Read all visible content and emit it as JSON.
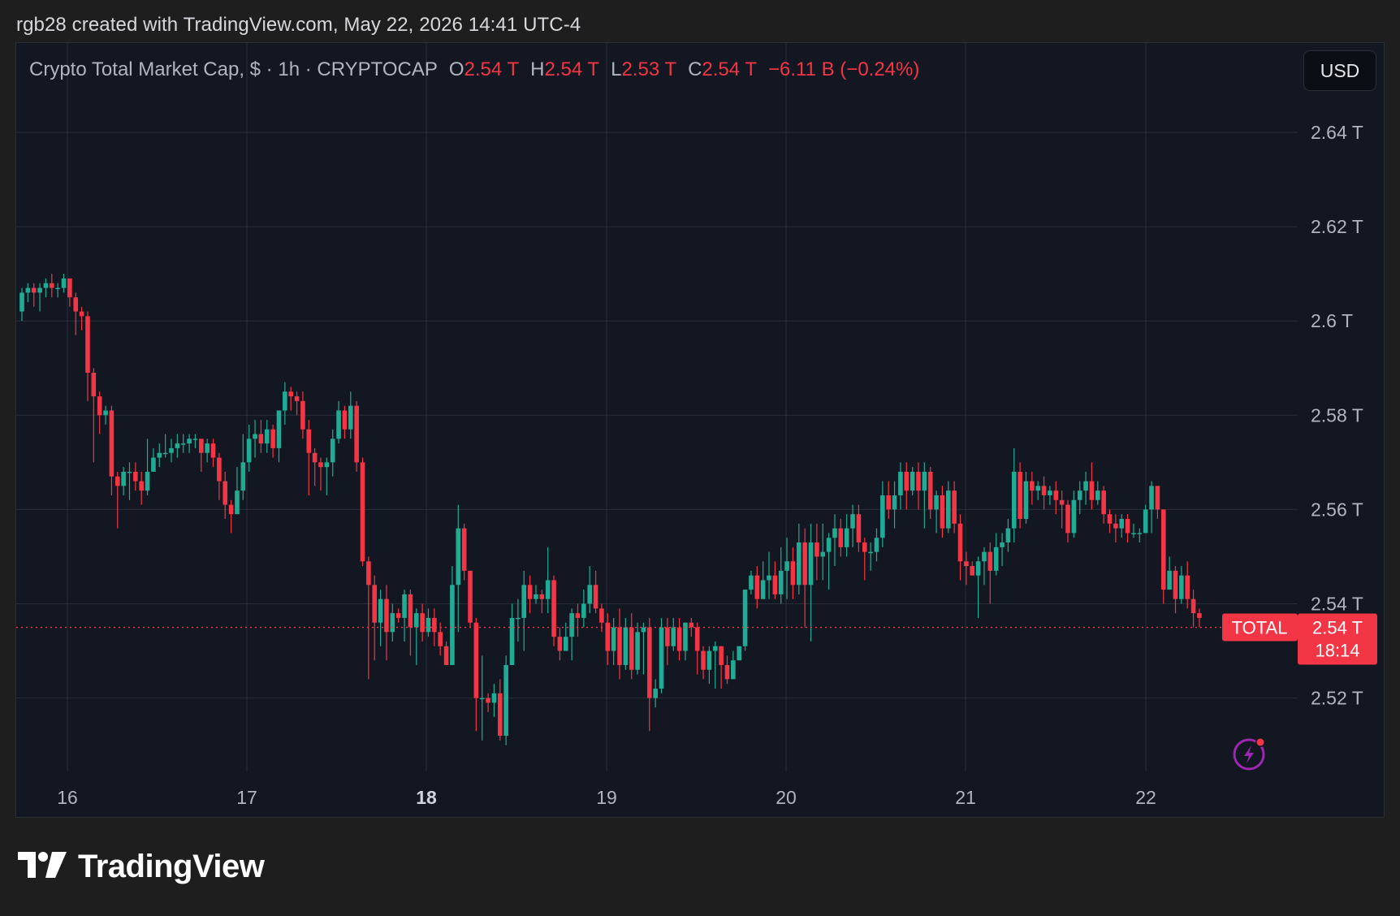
{
  "header": {
    "caption": "rgb28 created with TradingView.com, May 22, 2026 14:41 UTC-4"
  },
  "legend": {
    "title": "Crypto Total Market Cap, $ · 1h · CRYPTOCAP",
    "o_label": "O",
    "o_value": "2.54 T",
    "h_label": "H",
    "h_value": "2.54 T",
    "l_label": "L",
    "l_value": "2.53 T",
    "c_label": "C",
    "c_value": "2.54 T",
    "change": "−6.11 B (−0.24%)"
  },
  "toolbar": {
    "currency_button": "USD"
  },
  "price_axis": {
    "ticks": [
      "2.64 T",
      "2.62 T",
      "2.6 T",
      "2.58 T",
      "2.56 T",
      "2.54 T",
      "2.52 T"
    ]
  },
  "time_axis": {
    "ticks": [
      "16",
      "17",
      "18",
      "19",
      "20",
      "21",
      "22"
    ],
    "bold_tick": "18"
  },
  "last_price": {
    "symbol_label": "TOTAL",
    "price_label": "2.54 T",
    "countdown": "18:14"
  },
  "brand": {
    "name": "TradingView"
  },
  "colors": {
    "up": "#22ab94",
    "down": "#f23645",
    "background": "#131722",
    "grid": "#2a2e39",
    "text": "#b2b5be"
  },
  "icons": {
    "lightning": "lightning-icon",
    "logo": "tradingview-logo-icon"
  },
  "chart_data": {
    "type": "candlestick",
    "interval": "1h",
    "y_unit": "T",
    "ylim": [
      2.505,
      2.655
    ],
    "y_ticks": [
      2.52,
      2.54,
      2.56,
      2.58,
      2.6,
      2.62,
      2.64
    ],
    "x_ticks": [
      "16",
      "17",
      "18",
      "19",
      "20",
      "21",
      "22"
    ],
    "grid": true,
    "last_price": 2.535,
    "candles": [
      [
        2.602,
        2.606,
        2.6,
        2.607
      ],
      [
        2.606,
        2.607,
        2.604,
        2.608
      ],
      [
        2.607,
        2.606,
        2.603,
        2.608
      ],
      [
        2.606,
        2.607,
        2.602,
        2.608
      ],
      [
        2.607,
        2.608,
        2.605,
        2.609
      ],
      [
        2.608,
        2.607,
        2.605,
        2.61
      ],
      [
        2.607,
        2.607,
        2.605,
        2.608
      ],
      [
        2.607,
        2.609,
        2.606,
        2.61
      ],
      [
        2.609,
        2.605,
        2.603,
        2.609
      ],
      [
        2.605,
        2.602,
        2.597,
        2.606
      ],
      [
        2.602,
        2.601,
        2.598,
        2.603
      ],
      [
        2.601,
        2.589,
        2.583,
        2.602
      ],
      [
        2.589,
        2.584,
        2.57,
        2.59
      ],
      [
        2.584,
        2.58,
        2.576,
        2.585
      ],
      [
        2.58,
        2.581,
        2.578,
        2.582
      ],
      [
        2.581,
        2.567,
        2.563,
        2.582
      ],
      [
        2.567,
        2.565,
        2.556,
        2.568
      ],
      [
        2.565,
        2.568,
        2.563,
        2.569
      ],
      [
        2.568,
        2.568,
        2.562,
        2.57
      ],
      [
        2.568,
        2.566,
        2.564,
        2.57
      ],
      [
        2.566,
        2.564,
        2.561,
        2.568
      ],
      [
        2.564,
        2.568,
        2.563,
        2.575
      ],
      [
        2.568,
        2.571,
        2.568,
        2.573
      ],
      [
        2.571,
        2.572,
        2.569,
        2.574
      ],
      [
        2.572,
        2.572,
        2.571,
        2.576
      ],
      [
        2.572,
        2.573,
        2.57,
        2.575
      ],
      [
        2.573,
        2.574,
        2.571,
        2.576
      ],
      [
        2.574,
        2.574,
        2.572,
        2.576
      ],
      [
        2.574,
        2.575,
        2.572,
        2.576
      ],
      [
        2.575,
        2.575,
        2.573,
        2.576
      ],
      [
        2.575,
        2.572,
        2.568,
        2.575
      ],
      [
        2.572,
        2.574,
        2.57,
        2.575
      ],
      [
        2.574,
        2.571,
        2.569,
        2.575
      ],
      [
        2.571,
        2.566,
        2.562,
        2.572
      ],
      [
        2.566,
        2.561,
        2.558,
        2.568
      ],
      [
        2.561,
        2.559,
        2.555,
        2.562
      ],
      [
        2.559,
        2.564,
        2.559,
        2.569
      ],
      [
        2.564,
        2.57,
        2.562,
        2.576
      ],
      [
        2.57,
        2.575,
        2.568,
        2.578
      ],
      [
        2.575,
        2.576,
        2.571,
        2.579
      ],
      [
        2.576,
        2.574,
        2.572,
        2.579
      ],
      [
        2.574,
        2.577,
        2.572,
        2.579
      ],
      [
        2.577,
        2.573,
        2.571,
        2.578
      ],
      [
        2.573,
        2.581,
        2.57,
        2.581
      ],
      [
        2.581,
        2.585,
        2.578,
        2.587
      ],
      [
        2.585,
        2.584,
        2.581,
        2.586
      ],
      [
        2.584,
        2.583,
        2.58,
        2.585
      ],
      [
        2.583,
        2.577,
        2.575,
        2.585
      ],
      [
        2.577,
        2.572,
        2.563,
        2.579
      ],
      [
        2.572,
        2.57,
        2.565,
        2.573
      ],
      [
        2.57,
        2.569,
        2.564,
        2.571
      ],
      [
        2.569,
        2.57,
        2.563,
        2.571
      ],
      [
        2.57,
        2.575,
        2.567,
        2.577
      ],
      [
        2.575,
        2.581,
        2.574,
        2.583
      ],
      [
        2.581,
        2.577,
        2.575,
        2.582
      ],
      [
        2.577,
        2.582,
        2.575,
        2.585
      ],
      [
        2.582,
        2.57,
        2.568,
        2.583
      ],
      [
        2.57,
        2.549,
        2.548,
        2.571
      ],
      [
        2.549,
        2.544,
        2.524,
        2.55
      ],
      [
        2.544,
        2.536,
        2.528,
        2.546
      ],
      [
        2.536,
        2.541,
        2.531,
        2.543
      ],
      [
        2.541,
        2.534,
        2.528,
        2.544
      ],
      [
        2.534,
        2.538,
        2.532,
        2.54
      ],
      [
        2.538,
        2.537,
        2.536,
        2.539
      ],
      [
        2.537,
        2.542,
        2.532,
        2.543
      ],
      [
        2.542,
        2.535,
        2.529,
        2.543
      ],
      [
        2.535,
        2.538,
        2.527,
        2.539
      ],
      [
        2.538,
        2.534,
        2.532,
        2.54
      ],
      [
        2.534,
        2.537,
        2.533,
        2.539
      ],
      [
        2.537,
        2.534,
        2.531,
        2.539
      ],
      [
        2.534,
        2.531,
        2.529,
        2.536
      ],
      [
        2.531,
        2.527,
        2.527,
        2.532
      ],
      [
        2.527,
        2.544,
        2.528,
        2.548
      ],
      [
        2.544,
        2.556,
        2.534,
        2.561
      ],
      [
        2.556,
        2.547,
        2.545,
        2.557
      ],
      [
        2.547,
        2.536,
        2.535,
        2.547
      ],
      [
        2.536,
        2.52,
        2.513,
        2.537
      ],
      [
        2.52,
        2.52,
        2.511,
        2.529
      ],
      [
        2.52,
        2.519,
        2.517,
        2.521
      ],
      [
        2.519,
        2.521,
        2.516,
        2.523
      ],
      [
        2.521,
        2.512,
        2.511,
        2.524
      ],
      [
        2.512,
        2.527,
        2.51,
        2.529
      ],
      [
        2.527,
        2.537,
        2.527,
        2.54
      ],
      [
        2.537,
        2.537,
        2.532,
        2.541
      ],
      [
        2.537,
        2.544,
        2.53,
        2.547
      ],
      [
        2.544,
        2.541,
        2.538,
        2.546
      ],
      [
        2.541,
        2.542,
        2.54,
        2.544
      ],
      [
        2.542,
        2.541,
        2.538,
        2.543
      ],
      [
        2.541,
        2.545,
        2.538,
        2.552
      ],
      [
        2.545,
        2.533,
        2.531,
        2.546
      ],
      [
        2.533,
        2.53,
        2.528,
        2.535
      ],
      [
        2.53,
        2.533,
        2.53,
        2.536
      ],
      [
        2.533,
        2.538,
        2.528,
        2.539
      ],
      [
        2.538,
        2.537,
        2.533,
        2.54
      ],
      [
        2.537,
        2.54,
        2.535,
        2.543
      ],
      [
        2.54,
        2.544,
        2.538,
        2.548
      ],
      [
        2.544,
        2.539,
        2.538,
        2.547
      ],
      [
        2.539,
        2.536,
        2.534,
        2.54
      ],
      [
        2.536,
        2.53,
        2.527,
        2.538
      ],
      [
        2.53,
        2.535,
        2.527,
        2.537
      ],
      [
        2.535,
        2.527,
        2.524,
        2.539
      ],
      [
        2.527,
        2.535,
        2.526,
        2.537
      ],
      [
        2.535,
        2.526,
        2.524,
        2.538
      ],
      [
        2.526,
        2.534,
        2.525,
        2.536
      ],
      [
        2.534,
        2.535,
        2.525,
        2.536
      ],
      [
        2.535,
        2.52,
        2.513,
        2.537
      ],
      [
        2.52,
        2.522,
        2.518,
        2.524
      ],
      [
        2.522,
        2.535,
        2.521,
        2.537
      ],
      [
        2.535,
        2.531,
        2.527,
        2.537
      ],
      [
        2.531,
        2.535,
        2.53,
        2.537
      ],
      [
        2.535,
        2.53,
        2.528,
        2.537
      ],
      [
        2.53,
        2.536,
        2.528,
        2.536
      ],
      [
        2.536,
        2.535,
        2.533,
        2.537
      ],
      [
        2.535,
        2.53,
        2.525,
        2.536
      ],
      [
        2.53,
        2.526,
        2.524,
        2.531
      ],
      [
        2.526,
        2.53,
        2.523,
        2.531
      ],
      [
        2.53,
        2.531,
        2.522,
        2.532
      ],
      [
        2.531,
        2.527,
        2.522,
        2.531
      ],
      [
        2.527,
        2.524,
        2.523,
        2.529
      ],
      [
        2.524,
        2.528,
        2.525,
        2.53
      ],
      [
        2.528,
        2.531,
        2.528,
        2.531
      ],
      [
        2.531,
        2.543,
        2.53,
        2.543
      ],
      [
        2.543,
        2.546,
        2.542,
        2.547
      ],
      [
        2.546,
        2.541,
        2.539,
        2.548
      ],
      [
        2.541,
        2.545,
        2.541,
        2.549
      ],
      [
        2.545,
        2.546,
        2.541,
        2.551
      ],
      [
        2.546,
        2.542,
        2.541,
        2.549
      ],
      [
        2.542,
        2.547,
        2.54,
        2.552
      ],
      [
        2.547,
        2.549,
        2.541,
        2.554
      ],
      [
        2.549,
        2.544,
        2.541,
        2.552
      ],
      [
        2.544,
        2.553,
        2.542,
        2.557
      ],
      [
        2.553,
        2.544,
        2.535,
        2.556
      ],
      [
        2.544,
        2.553,
        2.532,
        2.557
      ],
      [
        2.553,
        2.55,
        2.545,
        2.557
      ],
      [
        2.55,
        2.551,
        2.545,
        2.557
      ],
      [
        2.551,
        2.554,
        2.543,
        2.555
      ],
      [
        2.554,
        2.556,
        2.548,
        2.559
      ],
      [
        2.556,
        2.552,
        2.55,
        2.558
      ],
      [
        2.552,
        2.556,
        2.55,
        2.559
      ],
      [
        2.556,
        2.559,
        2.552,
        2.561
      ],
      [
        2.559,
        2.553,
        2.551,
        2.561
      ],
      [
        2.553,
        2.551,
        2.545,
        2.554
      ],
      [
        2.551,
        2.551,
        2.547,
        2.553
      ],
      [
        2.551,
        2.554,
        2.549,
        2.556
      ],
      [
        2.554,
        2.563,
        2.552,
        2.566
      ],
      [
        2.563,
        2.56,
        2.558,
        2.566
      ],
      [
        2.56,
        2.563,
        2.556,
        2.566
      ],
      [
        2.563,
        2.568,
        2.56,
        2.57
      ],
      [
        2.568,
        2.564,
        2.56,
        2.57
      ],
      [
        2.564,
        2.568,
        2.563,
        2.569
      ],
      [
        2.568,
        2.564,
        2.56,
        2.57
      ],
      [
        2.564,
        2.568,
        2.556,
        2.57
      ],
      [
        2.568,
        2.56,
        2.558,
        2.569
      ],
      [
        2.56,
        2.563,
        2.555,
        2.564
      ],
      [
        2.563,
        2.556,
        2.554,
        2.565
      ],
      [
        2.556,
        2.564,
        2.555,
        2.566
      ],
      [
        2.564,
        2.557,
        2.555,
        2.566
      ],
      [
        2.557,
        2.549,
        2.545,
        2.559
      ],
      [
        2.549,
        2.548,
        2.544,
        2.551
      ],
      [
        2.548,
        2.546,
        2.547,
        2.549
      ],
      [
        2.546,
        2.549,
        2.537,
        2.55
      ],
      [
        2.549,
        2.551,
        2.544,
        2.552
      ],
      [
        2.551,
        2.547,
        2.54,
        2.553
      ],
      [
        2.547,
        2.552,
        2.546,
        2.555
      ],
      [
        2.552,
        2.553,
        2.548,
        2.555
      ],
      [
        2.553,
        2.556,
        2.551,
        2.558
      ],
      [
        2.556,
        2.568,
        2.553,
        2.573
      ],
      [
        2.568,
        2.558,
        2.556,
        2.57
      ],
      [
        2.558,
        2.566,
        2.557,
        2.568
      ],
      [
        2.566,
        2.564,
        2.561,
        2.568
      ],
      [
        2.564,
        2.565,
        2.562,
        2.566
      ],
      [
        2.565,
        2.563,
        2.56,
        2.567
      ],
      [
        2.563,
        2.564,
        2.561,
        2.565
      ],
      [
        2.564,
        2.562,
        2.559,
        2.566
      ],
      [
        2.562,
        2.561,
        2.556,
        2.564
      ],
      [
        2.561,
        2.555,
        2.553,
        2.562
      ],
      [
        2.555,
        2.562,
        2.554,
        2.564
      ],
      [
        2.562,
        2.564,
        2.559,
        2.566
      ],
      [
        2.564,
        2.566,
        2.561,
        2.568
      ],
      [
        2.566,
        2.562,
        2.56,
        2.57
      ],
      [
        2.562,
        2.564,
        2.561,
        2.566
      ],
      [
        2.564,
        2.559,
        2.557,
        2.565
      ],
      [
        2.559,
        2.557,
        2.555,
        2.56
      ],
      [
        2.557,
        2.556,
        2.553,
        2.559
      ],
      [
        2.556,
        2.558,
        2.554,
        2.559
      ],
      [
        2.558,
        2.555,
        2.553,
        2.559
      ],
      [
        2.555,
        2.555,
        2.554,
        2.557
      ],
      [
        2.555,
        2.555,
        2.553,
        2.556
      ],
      [
        2.555,
        2.56,
        2.555,
        2.561
      ],
      [
        2.56,
        2.565,
        2.555,
        2.566
      ],
      [
        2.565,
        2.56,
        2.558,
        2.565
      ],
      [
        2.56,
        2.543,
        2.54,
        2.56
      ],
      [
        2.543,
        2.547,
        2.543,
        2.55
      ],
      [
        2.547,
        2.541,
        2.538,
        2.548
      ],
      [
        2.541,
        2.546,
        2.54,
        2.548
      ],
      [
        2.546,
        2.541,
        2.539,
        2.549
      ],
      [
        2.541,
        2.538,
        2.535,
        2.543
      ],
      [
        2.538,
        2.537,
        2.535,
        2.539
      ]
    ]
  }
}
